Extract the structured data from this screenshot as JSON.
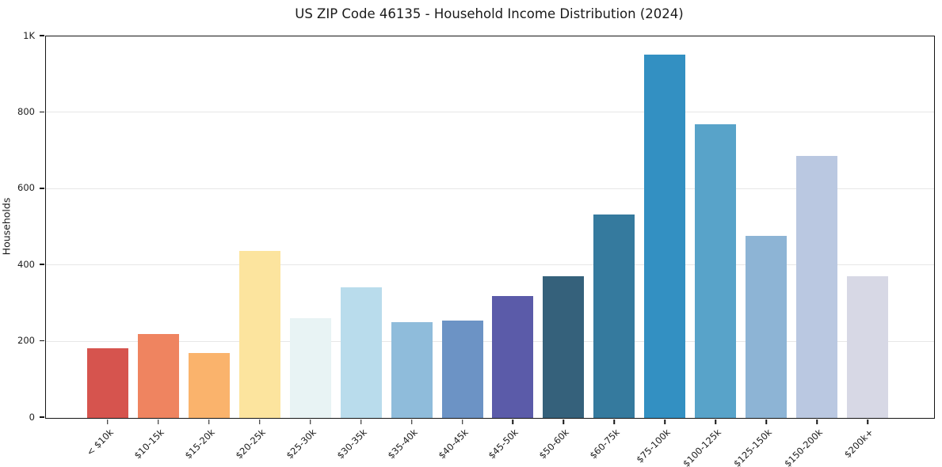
{
  "figure": {
    "background": "#ffffff"
  },
  "chart_data": {
    "type": "bar",
    "title": "US ZIP Code 46135 - Household Income Distribution (2024)",
    "xlabel": "",
    "ylabel": "Households",
    "categories": [
      "< $10k",
      "$10-15k",
      "$15-20k",
      "$20-25k",
      "$25-30k",
      "$30-35k",
      "$35-40k",
      "$40-45k",
      "$45-50k",
      "$50-60k",
      "$60-75k",
      "$75-100k",
      "$100-125k",
      "$125-150k",
      "$150-200k",
      "$200k+"
    ],
    "values": [
      183,
      220,
      170,
      437,
      262,
      343,
      252,
      256,
      320,
      372,
      533,
      952,
      770,
      478,
      687,
      372
    ],
    "bar_colors": [
      "#d6544e",
      "#ef8460",
      "#fab36c",
      "#fce49e",
      "#e8f3f4",
      "#b9dcec",
      "#8fbcdb",
      "#6c93c5",
      "#5b5ba9",
      "#35617b",
      "#357a9e",
      "#3390c2",
      "#58a3c9",
      "#8db4d5",
      "#bac8e1",
      "#d7d8e5"
    ],
    "ylim": [
      0,
      1000
    ],
    "yticks": [
      {
        "value": 0,
        "label": "0"
      },
      {
        "value": 200,
        "label": "200"
      },
      {
        "value": 400,
        "label": "400"
      },
      {
        "value": 600,
        "label": "600"
      },
      {
        "value": 800,
        "label": "800"
      },
      {
        "value": 1000,
        "label": "1K"
      }
    ],
    "grid": "horizontal",
    "grid_color": "#e7e7e7",
    "spine_color": "#151515",
    "text_color": "#1d1d1d",
    "legend": "none"
  }
}
